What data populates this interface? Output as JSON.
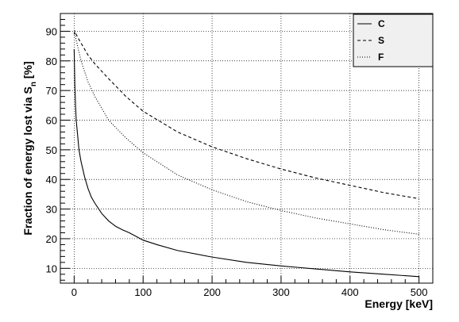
{
  "chart_data": {
    "type": "line",
    "title": "",
    "xlabel": "Energy [keV]",
    "ylabel_main": "Fraction of energy lost via S",
    "ylabel_sub": "n",
    "ylabel_unit": " [%]",
    "xlim": [
      -20,
      520
    ],
    "ylim": [
      5,
      96
    ],
    "xticks": [
      0,
      100,
      200,
      300,
      400,
      500
    ],
    "yticks": [
      10,
      20,
      30,
      40,
      50,
      60,
      70,
      80,
      90
    ],
    "grid": true,
    "legend_position": "top-right",
    "series": [
      {
        "name": "C",
        "style": "solid",
        "x": [
          0,
          1,
          2,
          3,
          5,
          7,
          10,
          15,
          20,
          25,
          30,
          40,
          50,
          60,
          70,
          80,
          100,
          120,
          150,
          200,
          250,
          300,
          350,
          400,
          450,
          500
        ],
        "y": [
          84,
          72,
          65,
          60,
          55,
          50,
          46,
          41,
          37,
          34,
          32,
          28.5,
          26,
          24.2,
          23,
          22,
          19.5,
          18,
          16,
          13.8,
          12,
          10.8,
          9.8,
          8.8,
          8,
          7.2
        ]
      },
      {
        "name": "S",
        "style": "dashed",
        "x": [
          0,
          1,
          2,
          5,
          10,
          20,
          30,
          50,
          75,
          100,
          150,
          200,
          250,
          300,
          350,
          400,
          450,
          500
        ],
        "y": [
          89,
          90,
          89.5,
          88,
          86,
          82,
          79,
          74,
          68,
          63,
          56,
          51,
          47,
          43.5,
          40.5,
          38,
          35.5,
          33.5
        ]
      },
      {
        "name": "F",
        "style": "dotted",
        "x": [
          0,
          1,
          2,
          5,
          10,
          20,
          30,
          50,
          75,
          100,
          150,
          200,
          250,
          300,
          350,
          400,
          450,
          500
        ],
        "y": [
          89,
          89.5,
          88,
          85,
          80,
          73,
          68,
          60,
          54,
          49,
          41.5,
          36.5,
          32.5,
          29.5,
          27,
          25,
          23,
          21.5
        ]
      }
    ]
  }
}
